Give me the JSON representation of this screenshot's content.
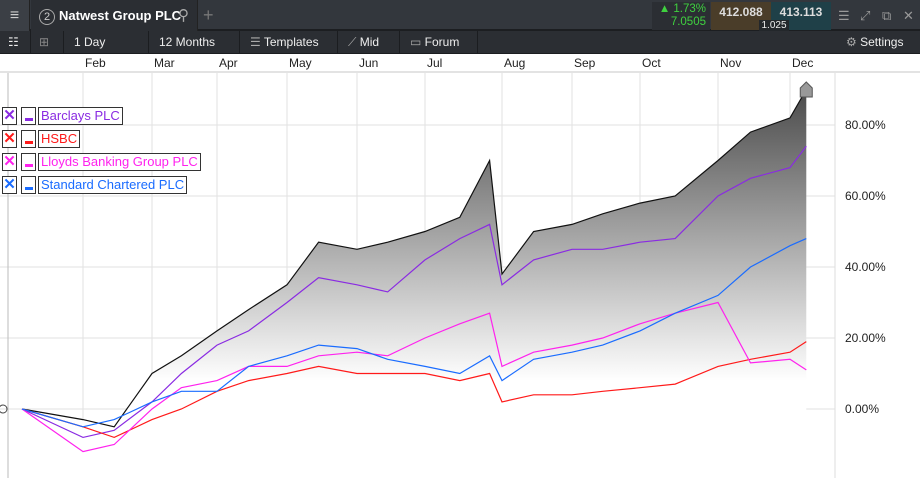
{
  "header": {
    "menu_icon": "hamburger-icon",
    "tab_number": "2",
    "tab_title": "Natwest Group PLC",
    "search_icon": "search-icon",
    "add_tab": "+",
    "change_pct": "1.73%",
    "change_abs": "7.0505",
    "change_color": "#3fd13f",
    "bid": "412.088",
    "ask": "413.113",
    "spread": "1.025"
  },
  "toolbar": {
    "interval": "1 Day",
    "period": "12 Months",
    "templates": "Templates",
    "price_type": "Mid",
    "forum": "Forum",
    "settings": "Settings"
  },
  "chart_data": {
    "type": "line",
    "x_ticks": [
      "Feb",
      "Mar",
      "Apr",
      "May",
      "Jun",
      "Jul",
      "Aug",
      "Sep",
      "Oct",
      "Nov",
      "Dec"
    ],
    "y_ticks": [
      "0.00%",
      "20.00%",
      "40.00%",
      "60.00%",
      "80.00%"
    ],
    "ylim": [
      -15,
      95
    ],
    "y_axis_position": "right",
    "grid": true,
    "legend_position": "top-left",
    "x": [
      "5 Jan",
      "1 Feb",
      "15 Feb",
      "1 Mar",
      "15 Mar",
      "1 Apr",
      "15 Apr",
      "1 May",
      "15 May",
      "1 Jun",
      "15 Jun",
      "1 Jul",
      "15 Jul",
      "27 Jul",
      "1 Aug",
      "15 Aug",
      "1 Sep",
      "15 Sep",
      "1 Oct",
      "15 Oct",
      "1 Nov",
      "15 Nov",
      "1 Dec",
      "8 Dec"
    ],
    "main_series": {
      "name": "Natwest Group PLC",
      "color": "#111111",
      "values": [
        0,
        -3,
        -5,
        10,
        15,
        22,
        28,
        35,
        47,
        45,
        47,
        50,
        54,
        70,
        38,
        50,
        52,
        55,
        58,
        60,
        70,
        78,
        82,
        90
      ]
    },
    "series": [
      {
        "name": "Barclays PLC",
        "color": "#8a2be2",
        "values": [
          0,
          -8,
          -6,
          2,
          10,
          18,
          22,
          30,
          37,
          35,
          33,
          42,
          48,
          52,
          35,
          42,
          45,
          45,
          47,
          48,
          60,
          65,
          68,
          74
        ]
      },
      {
        "name": "HSBC",
        "color": "#ff1a1a",
        "values": [
          0,
          -5,
          -8,
          -3,
          0,
          5,
          8,
          10,
          12,
          10,
          10,
          10,
          8,
          10,
          2,
          4,
          4,
          5,
          6,
          7,
          12,
          14,
          16,
          19
        ]
      },
      {
        "name": "Lloyds Banking Group PLC",
        "color": "#ff22ee",
        "values": [
          0,
          -12,
          -10,
          0,
          6,
          8,
          12,
          12,
          15,
          16,
          15,
          20,
          24,
          27,
          12,
          16,
          18,
          20,
          24,
          27,
          30,
          13,
          14,
          11
        ]
      },
      {
        "name": "Standard Chartered PLC",
        "color": "#1a6cff",
        "values": [
          0,
          -5,
          -3,
          2,
          5,
          5,
          12,
          15,
          18,
          17,
          14,
          12,
          10,
          15,
          8,
          14,
          16,
          18,
          22,
          27,
          32,
          40,
          46,
          48
        ]
      }
    ]
  }
}
